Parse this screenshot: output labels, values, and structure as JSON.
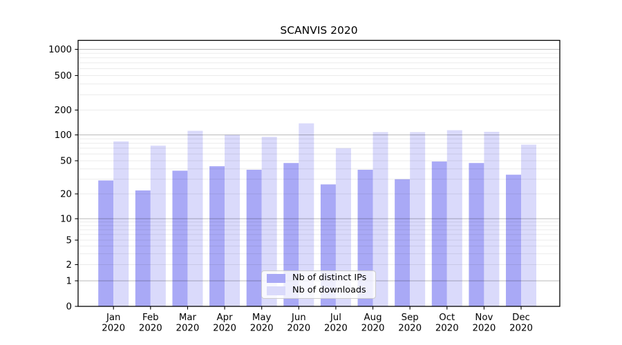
{
  "chart_data": {
    "type": "bar",
    "title": "SCANVIS 2020",
    "categories": [
      "Jan",
      "Feb",
      "Mar",
      "Apr",
      "May",
      "Jun",
      "Jul",
      "Aug",
      "Sep",
      "Oct",
      "Nov",
      "Dec"
    ],
    "x_sublabel": "2020",
    "series": [
      {
        "name": "Nb of distinct IPs",
        "color": "#a9a9f6",
        "values": [
          29,
          22,
          38,
          43,
          39,
          47,
          26,
          39,
          30,
          49,
          47,
          34
        ]
      },
      {
        "name": "Nb of downloads",
        "color": "#dadafb",
        "values": [
          84,
          75,
          112,
          100,
          95,
          138,
          70,
          108,
          108,
          114,
          109,
          77
        ]
      }
    ],
    "yscale": "symlog",
    "yticks": [
      0,
      1,
      2,
      5,
      10,
      20,
      50,
      100,
      200,
      500,
      1000
    ],
    "ylim": [
      0,
      1300
    ],
    "xlabel": "",
    "ylabel": "",
    "grid": true,
    "legend_position": "lower center",
    "axis_color": "#000000",
    "major_gridline_color": "#c4c4c4",
    "minor_gridline_color": "#ebebeb"
  }
}
